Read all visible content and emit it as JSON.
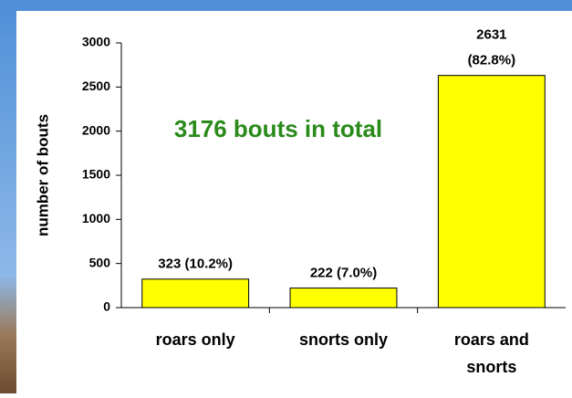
{
  "chart_data": {
    "type": "bar",
    "annotation": "3176 bouts in total",
    "y_label": "number of bouts",
    "categories": [
      "roars only",
      "snorts only",
      "roars and\nsnorts"
    ],
    "values": [
      323,
      222,
      2631
    ],
    "value_labels": [
      "323 (10.2%)",
      "222 (7.0%)",
      "2631\n(82.8%)"
    ],
    "color": "#ffff00",
    "ylim": [
      0,
      3000
    ],
    "yticks": [
      0,
      500,
      1000,
      1500,
      2000,
      2500,
      3000
    ],
    "grid": false
  }
}
